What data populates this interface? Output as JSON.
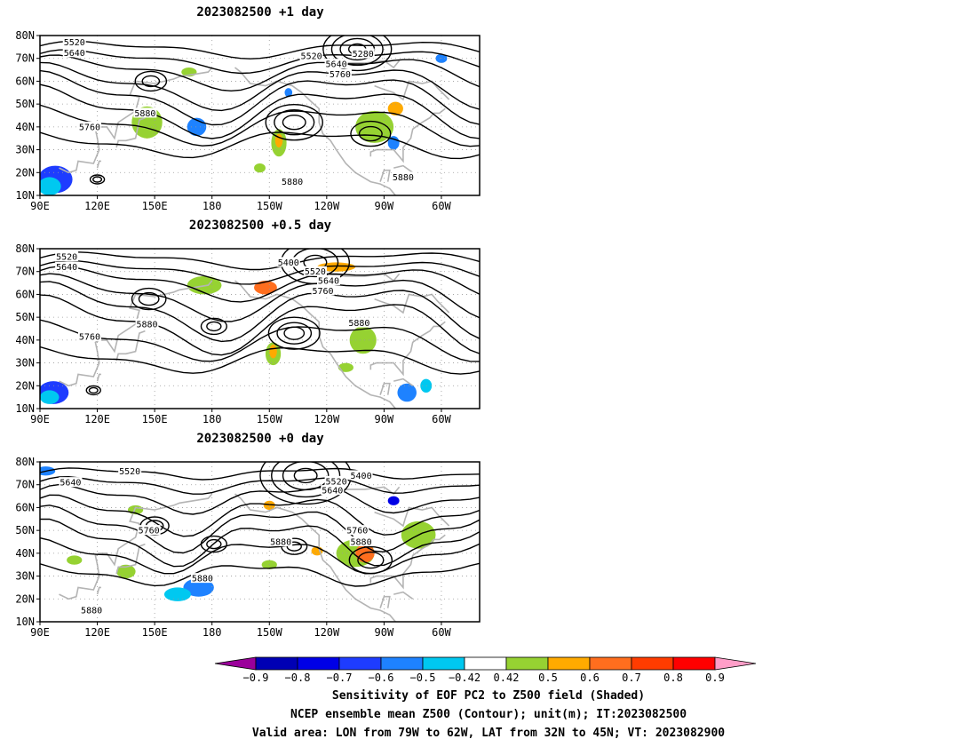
{
  "panels": [
    {
      "title": "2023082500  +1 day",
      "contour_labels": [
        {
          "text": "5520",
          "lon": 108,
          "lat": 77
        },
        {
          "text": "5640",
          "lon": 108,
          "lat": 72.5
        },
        {
          "text": "5520",
          "lon": -128,
          "lat": 71
        },
        {
          "text": "5640",
          "lon": -115,
          "lat": 67.5
        },
        {
          "text": "5760",
          "lon": -113,
          "lat": 63
        },
        {
          "text": "5280",
          "lon": -101,
          "lat": 72
        },
        {
          "text": "5880",
          "lon": 145,
          "lat": 46
        },
        {
          "text": "5760",
          "lon": 116,
          "lat": 40
        },
        {
          "text": "5880",
          "lon": -138,
          "lat": 16
        },
        {
          "text": "5880",
          "lon": -80,
          "lat": 18
        }
      ]
    },
    {
      "title": "2023082500  +0.5 day",
      "contour_labels": [
        {
          "text": "5520",
          "lon": 104,
          "lat": 76.5
        },
        {
          "text": "5640",
          "lon": 104,
          "lat": 72
        },
        {
          "text": "5400",
          "lon": -140,
          "lat": 74
        },
        {
          "text": "5520",
          "lon": -126,
          "lat": 70
        },
        {
          "text": "5640",
          "lon": -119,
          "lat": 66
        },
        {
          "text": "5760",
          "lon": -122,
          "lat": 61.5
        },
        {
          "text": "5880",
          "lon": 146,
          "lat": 47
        },
        {
          "text": "5760",
          "lon": 116,
          "lat": 41.5
        },
        {
          "text": "5880",
          "lon": -103,
          "lat": 47.5
        }
      ]
    },
    {
      "title": "2023082500  +0 day",
      "contour_labels": [
        {
          "text": "5520",
          "lon": 137,
          "lat": 76
        },
        {
          "text": "5640",
          "lon": 106,
          "lat": 71
        },
        {
          "text": "5520",
          "lon": -115,
          "lat": 71.5
        },
        {
          "text": "5640",
          "lon": -117,
          "lat": 67.5
        },
        {
          "text": "5400",
          "lon": -102,
          "lat": 74
        },
        {
          "text": "5760",
          "lon": 147,
          "lat": 50
        },
        {
          "text": "5880",
          "lon": -144,
          "lat": 45
        },
        {
          "text": "5880",
          "lon": -102,
          "lat": 45
        },
        {
          "text": "5760",
          "lon": -104,
          "lat": 50
        },
        {
          "text": "5880",
          "lon": 175,
          "lat": 29
        },
        {
          "text": "5880",
          "lon": 117,
          "lat": 15
        }
      ]
    }
  ],
  "axes": {
    "lat_labels": [
      "80N",
      "70N",
      "60N",
      "50N",
      "40N",
      "30N",
      "20N",
      "10N"
    ],
    "lat_values": [
      80,
      70,
      60,
      50,
      40,
      30,
      20,
      10
    ],
    "lon_labels": [
      "90E",
      "120E",
      "150E",
      "180",
      "150W",
      "120W",
      "90W",
      "60W"
    ],
    "lon_values": [
      90,
      120,
      150,
      180,
      210,
      240,
      270,
      300
    ],
    "lon_range": [
      90,
      320
    ],
    "lat_range": [
      10,
      80
    ]
  },
  "colorbar": {
    "labels": [
      "−0.9",
      "−0.8",
      "−0.7",
      "−0.6",
      "−0.5",
      "−0.42",
      "0.42",
      "0.5",
      "0.6",
      "0.7",
      "0.8",
      "0.9"
    ],
    "colors": [
      "#9b009b",
      "#0000b4",
      "#0000e6",
      "#1e3cff",
      "#1e82ff",
      "#00c8f0",
      "#ffffff",
      "#96d232",
      "#ffaa00",
      "#ff6e1e",
      "#ff3c00",
      "#ff0000",
      "#ff9ec8"
    ]
  },
  "captions": [
    "Sensitivity of EOF PC2 to Z500 field (Shaded)",
    "NCEP ensemble mean Z500 (Contour); unit(m); IT:2023082500",
    "Valid area: LON from 79W to 62W, LAT from 32N to 45N; VT: 2023082900"
  ],
  "map_style": {
    "coast_color": "#b4b4b4",
    "contour_color": "#000000",
    "grid_color": "#999999"
  }
}
